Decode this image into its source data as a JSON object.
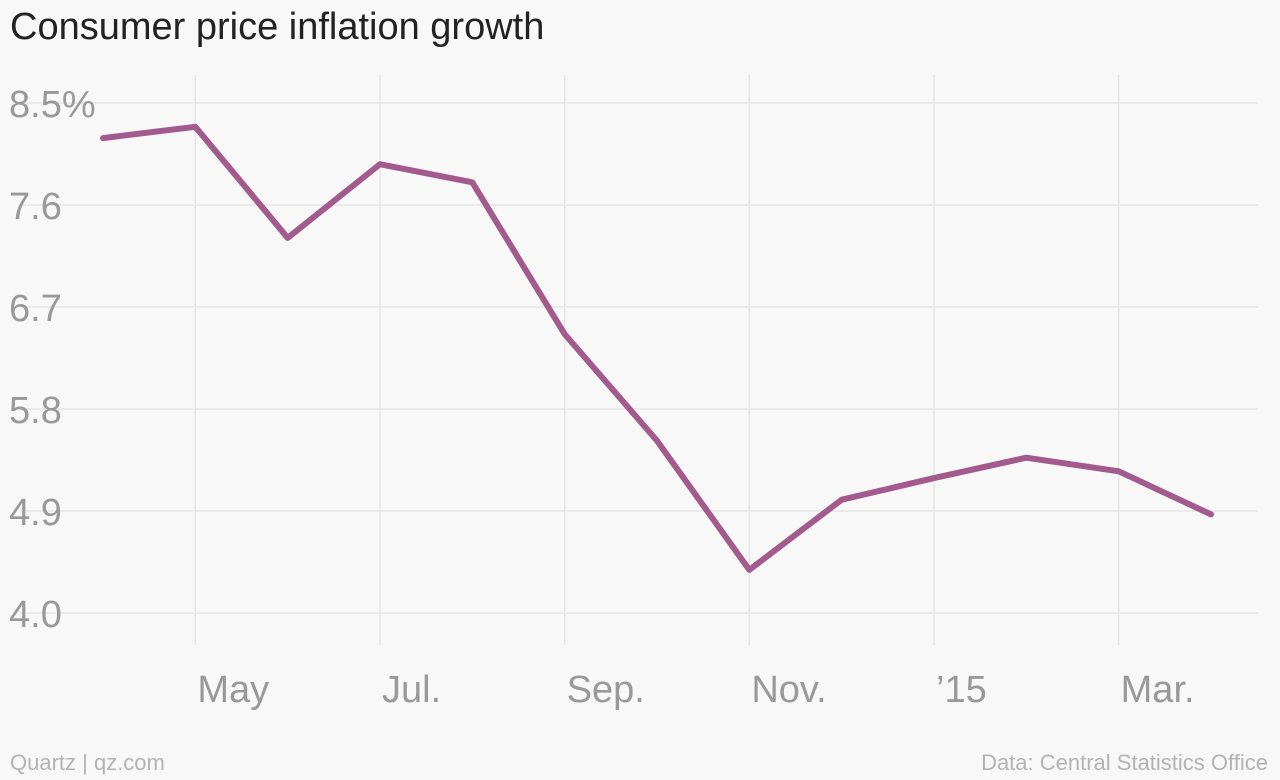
{
  "title": "Consumer price inflation growth",
  "footer": {
    "credit": "Quartz | qz.com",
    "source": "Data: Central Statistics Office"
  },
  "colors": {
    "line": "#a35a8d",
    "grid": "#e6e6e6",
    "tick_text": "#999999",
    "background": "#f8f8f8"
  },
  "chart_data": {
    "type": "line",
    "title": "Consumer price inflation growth",
    "xlabel": "",
    "ylabel": "",
    "ylim": [
      4.0,
      8.5
    ],
    "y_ticks": [
      "8.5%",
      "7.6",
      "6.7",
      "5.8",
      "4.9",
      "4.0"
    ],
    "y_tick_values": [
      8.5,
      7.6,
      6.7,
      5.8,
      4.9,
      4.0
    ],
    "x_ticks": [
      {
        "label": "May",
        "date": "2014-05"
      },
      {
        "label": "Jul.",
        "date": "2014-07"
      },
      {
        "label": "Sep.",
        "date": "2014-09"
      },
      {
        "label": "Nov.",
        "date": "2014-11"
      },
      {
        "label": "’15",
        "date": "2015-01"
      },
      {
        "label": "Mar.",
        "date": "2015-03"
      }
    ],
    "grid": true,
    "series": [
      {
        "x": [
          "2014-04",
          "2014-05",
          "2014-06",
          "2014-07",
          "2014-08",
          "2014-09",
          "2014-10",
          "2014-11",
          "2014-12",
          "2015-01",
          "2015-02",
          "2015-03",
          "2015-04"
        ],
        "values": [
          8.19,
          8.29,
          7.31,
          7.96,
          7.8,
          6.46,
          5.52,
          4.38,
          5.0,
          5.19,
          5.37,
          5.25,
          4.87
        ]
      }
    ]
  }
}
